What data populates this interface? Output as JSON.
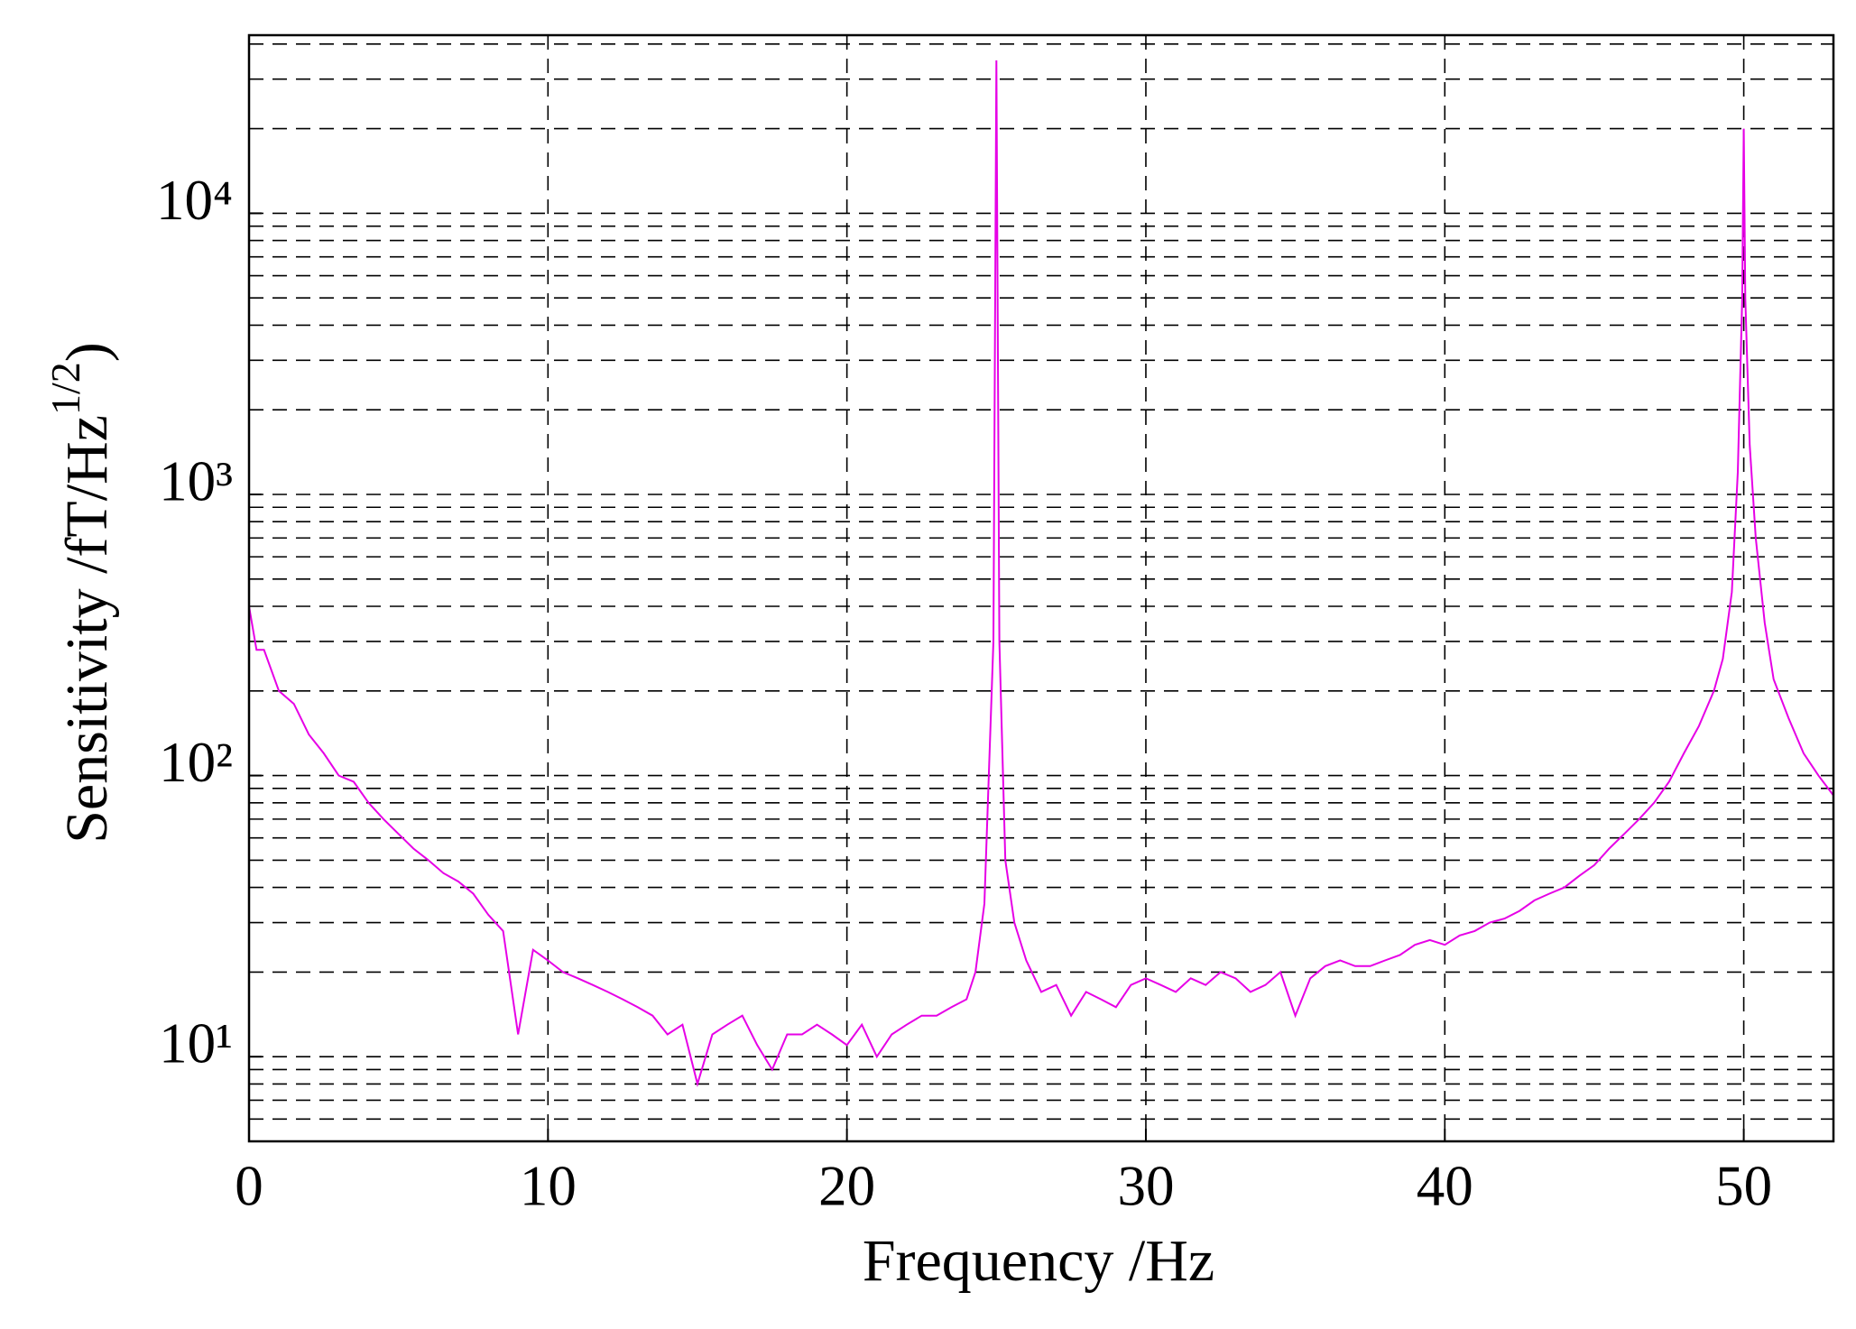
{
  "chart_data": {
    "type": "line",
    "x_label": "Frequency /Hz",
    "y_label": {
      "text": "Sensitivity /fT/Hz",
      "superscript": "1/2",
      "suffix": ")"
    },
    "x": [
      0,
      0.25,
      0.5,
      1,
      1.5,
      2,
      2.5,
      3,
      3.5,
      4,
      4.5,
      5,
      5.5,
      6,
      6.5,
      7,
      7.5,
      8,
      8.5,
      9,
      9.5,
      10,
      10.5,
      11,
      11.5,
      12,
      12.5,
      13,
      13.5,
      14,
      14.5,
      15,
      15.5,
      16,
      16.5,
      17,
      17.5,
      18,
      18.5,
      19,
      19.5,
      20,
      20.5,
      21,
      21.5,
      22,
      22.5,
      23,
      23.5,
      24,
      24.3,
      24.6,
      24.9,
      25,
      25.1,
      25.3,
      25.6,
      26,
      26.5,
      27,
      27.5,
      28,
      28.5,
      29,
      29.5,
      30,
      30.5,
      31,
      31.5,
      32,
      32.5,
      33,
      33.5,
      34,
      34.5,
      35,
      35.5,
      36,
      36.5,
      37,
      37.5,
      38,
      38.5,
      39,
      39.5,
      40,
      40.5,
      41,
      41.5,
      42,
      42.5,
      43,
      43.5,
      44,
      44.5,
      45,
      45.5,
      46,
      46.5,
      47,
      47.5,
      48,
      48.5,
      49,
      49.3,
      49.6,
      49.8,
      49.95,
      50,
      50.05,
      50.2,
      50.4,
      50.7,
      51,
      51.5,
      52,
      52.5,
      53
    ],
    "series": [
      {
        "name": "Sensitivity",
        "color": "#e600e6",
        "values": [
          400,
          280,
          280,
          200,
          180,
          140,
          120,
          100,
          95,
          80,
          70,
          62,
          55,
          50,
          45,
          42,
          38,
          32,
          28,
          12,
          24,
          22,
          20,
          19,
          18,
          17,
          16,
          15,
          14,
          12,
          13,
          8,
          12,
          13,
          14,
          11,
          9,
          12,
          12,
          13,
          12,
          11,
          13,
          10,
          12,
          13,
          14,
          14,
          15,
          16,
          20,
          35,
          300,
          35000,
          300,
          50,
          30,
          22,
          17,
          18,
          14,
          17,
          16,
          15,
          18,
          19,
          18,
          17,
          19,
          18,
          20,
          19,
          17,
          18,
          20,
          14,
          19,
          21,
          22,
          21,
          21,
          22,
          23,
          25,
          26,
          25,
          27,
          28,
          30,
          31,
          33,
          36,
          38,
          40,
          44,
          48,
          55,
          62,
          70,
          80,
          95,
          120,
          150,
          200,
          260,
          450,
          1200,
          5000,
          20000,
          5000,
          1500,
          700,
          350,
          220,
          160,
          120,
          100,
          85
        ]
      }
    ],
    "xlim": [
      0,
      53
    ],
    "xticks": [
      0,
      10,
      20,
      30,
      40,
      50
    ],
    "ylim": [
      5,
      43000
    ],
    "log_y": true,
    "yticks": [
      {
        "value": 10,
        "label": "10¹"
      },
      {
        "value": 100,
        "label": "10²"
      },
      {
        "value": 1000,
        "label": "10³"
      },
      {
        "value": 10000,
        "label": "10⁴"
      }
    ],
    "grid": true,
    "minor_grid": true
  }
}
